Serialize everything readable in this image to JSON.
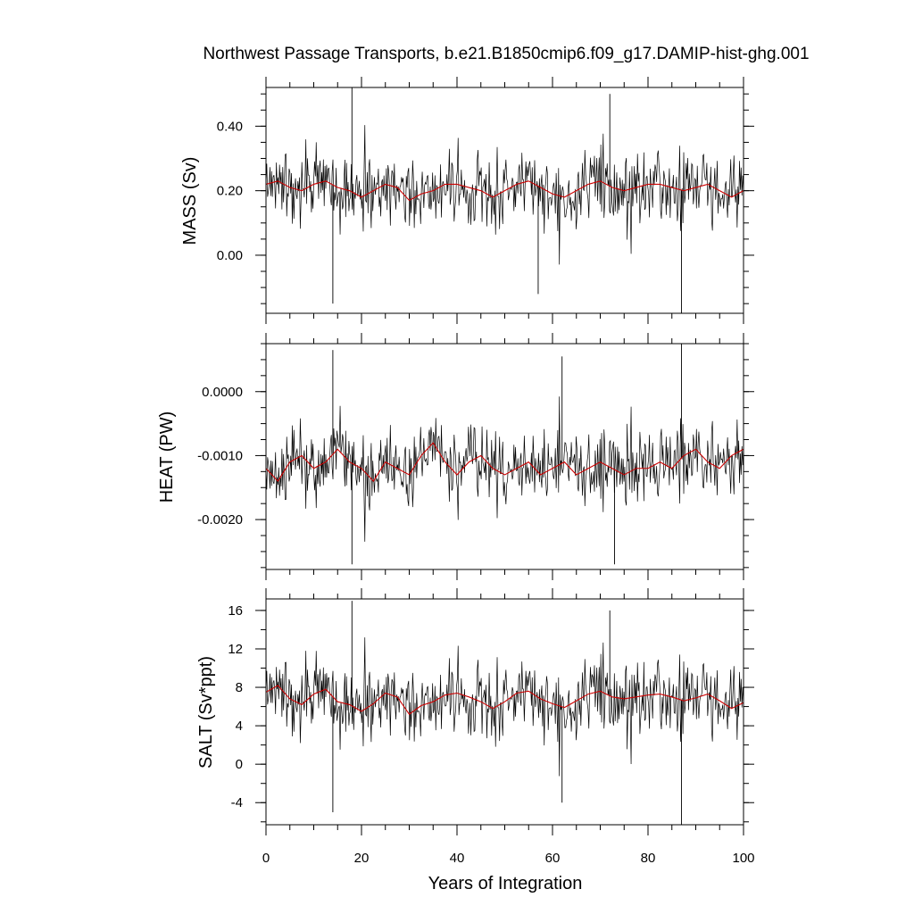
{
  "chart_data": [
    {
      "type": "line",
      "title": "Northwest Passage Transports, b.e21.B1850cmip6.f09_g17.DAMIP-hist-ghg.001",
      "ylabel": "MASS (Sv)",
      "xlabel": "",
      "xlim": [
        0,
        100
      ],
      "ylim": [
        -0.18,
        0.52
      ],
      "yticks": [
        0.0,
        0.2,
        0.4
      ],
      "ytick_labels": [
        "0.00",
        "0.20",
        "0.40"
      ],
      "yminor_step": 0.05,
      "mean": 0.2,
      "noise": 0.07,
      "low_pass": [
        0.22,
        0.23,
        0.21,
        0.2,
        0.22,
        0.23,
        0.21,
        0.2,
        0.18,
        0.2,
        0.22,
        0.21,
        0.17,
        0.19,
        0.2,
        0.22,
        0.22,
        0.21,
        0.2,
        0.18,
        0.2,
        0.22,
        0.23,
        0.21,
        0.19,
        0.18,
        0.2,
        0.22,
        0.23,
        0.21,
        0.2,
        0.21,
        0.22,
        0.22,
        0.21,
        0.2,
        0.21,
        0.22,
        0.2,
        0.18,
        0.2
      ],
      "spikes": [
        [
          18,
          0.52
        ],
        [
          14,
          -0.15
        ],
        [
          87,
          -0.19
        ],
        [
          72,
          0.5
        ],
        [
          57,
          -0.12
        ]
      ],
      "series": [
        {
          "name": "",
          "color": "#000000"
        },
        {
          "name": "",
          "color": "#cc0000"
        }
      ]
    },
    {
      "type": "line",
      "ylabel": "HEAT (PW)",
      "xlabel": "",
      "xlim": [
        0,
        100
      ],
      "ylim": [
        -0.00278,
        0.00075
      ],
      "yticks": [
        -0.002,
        -0.001,
        0.0
      ],
      "ytick_labels": [
        "-0.0020",
        "-0.0010",
        "0.0000"
      ],
      "yminor_step": 0.00025,
      "mean": -0.0011,
      "noise": 0.00035,
      "low_pass": [
        -0.0012,
        -0.0014,
        -0.0011,
        -0.001,
        -0.0012,
        -0.0011,
        -0.0009,
        -0.0011,
        -0.0012,
        -0.0014,
        -0.0011,
        -0.0012,
        -0.0013,
        -0.001,
        -0.0008,
        -0.0011,
        -0.0013,
        -0.0011,
        -0.001,
        -0.0012,
        -0.0013,
        -0.0012,
        -0.0011,
        -0.0013,
        -0.0012,
        -0.0011,
        -0.0013,
        -0.0012,
        -0.0011,
        -0.0012,
        -0.0013,
        -0.0012,
        -0.0012,
        -0.0011,
        -0.0012,
        -0.001,
        -0.0009,
        -0.0011,
        -0.0012,
        -0.001,
        -0.0009
      ],
      "spikes": [
        [
          18,
          -0.0027
        ],
        [
          14,
          0.00065
        ],
        [
          87,
          0.00075
        ],
        [
          73,
          -0.0027
        ],
        [
          62,
          0.00055
        ]
      ],
      "series": [
        {
          "name": "",
          "color": "#000000"
        },
        {
          "name": "",
          "color": "#cc0000"
        }
      ]
    },
    {
      "type": "line",
      "ylabel": "SALT (Sv*ppt)",
      "xlabel": "Years of Integration",
      "xlim": [
        0,
        100
      ],
      "ylim": [
        -6.3,
        17.2
      ],
      "xticks": [
        0,
        20,
        40,
        60,
        80,
        100
      ],
      "xtick_labels": [
        "0",
        "20",
        "40",
        "60",
        "80",
        "100"
      ],
      "xminor_step": 5,
      "yticks": [
        -4,
        0,
        4,
        8,
        12,
        16
      ],
      "ytick_labels": [
        "-4",
        "0",
        "4",
        "8",
        "12",
        "16"
      ],
      "yminor_step": 2,
      "mean": 6.8,
      "noise": 2.4,
      "low_pass": [
        7.5,
        8.2,
        6.8,
        6.2,
        7.3,
        7.8,
        6.5,
        6.2,
        5.5,
        6.3,
        7.4,
        7.0,
        5.2,
        6.1,
        6.5,
        7.2,
        7.4,
        7.0,
        6.5,
        5.8,
        6.5,
        7.4,
        7.6,
        6.8,
        6.3,
        5.9,
        6.6,
        7.3,
        7.6,
        7.0,
        6.8,
        7.0,
        7.2,
        7.3,
        7.0,
        6.6,
        6.9,
        7.3,
        6.6,
        5.8,
        6.4
      ],
      "spikes": [
        [
          18,
          17.0
        ],
        [
          14,
          -5.0
        ],
        [
          87,
          -6.3
        ],
        [
          72,
          16.0
        ],
        [
          62,
          -4.0
        ]
      ],
      "series": [
        {
          "name": "",
          "color": "#000000"
        },
        {
          "name": "",
          "color": "#cc0000"
        }
      ]
    }
  ]
}
